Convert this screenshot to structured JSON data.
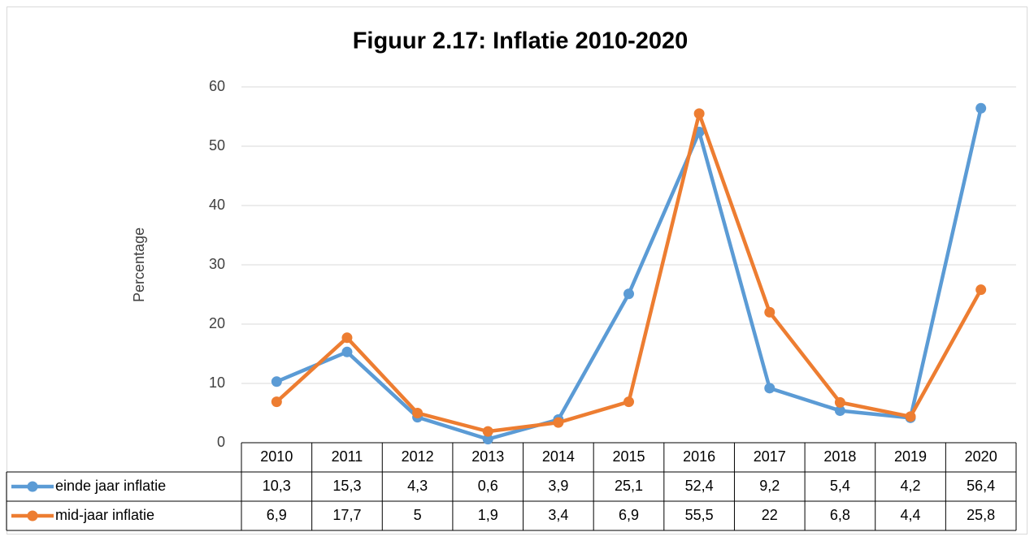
{
  "chart_data": {
    "type": "line",
    "title": "Figuur 2.17: Inflatie 2010-2020",
    "y_label": "Percentage",
    "categories": [
      "2010",
      "2011",
      "2012",
      "2013",
      "2014",
      "2015",
      "2016",
      "2017",
      "2018",
      "2019",
      "2020"
    ],
    "series": [
      {
        "name": "einde jaar inflatie",
        "color": "#5b9bd5",
        "values": [
          10.3,
          15.3,
          4.3,
          0.6,
          3.9,
          25.1,
          52.4,
          9.2,
          5.4,
          4.2,
          56.4
        ],
        "value_labels": [
          "10,3",
          "15,3",
          "4,3",
          "0,6",
          "3,9",
          "25,1",
          "52,4",
          "9,2",
          "5,4",
          "4,2",
          "56,4"
        ]
      },
      {
        "name": "mid-jaar inflatie",
        "color": "#ed7d31",
        "values": [
          6.9,
          17.7,
          5,
          1.9,
          3.4,
          6.9,
          55.5,
          22,
          6.8,
          4.4,
          25.8
        ],
        "value_labels": [
          "6,9",
          "17,7",
          "5",
          "1,9",
          "3,4",
          "6,9",
          "55,5",
          "22",
          "6,8",
          "4,4",
          "25,8"
        ]
      }
    ],
    "ylim": [
      0,
      60
    ],
    "yticks": [
      0,
      10,
      20,
      30,
      40,
      50,
      60
    ],
    "grid": true
  }
}
